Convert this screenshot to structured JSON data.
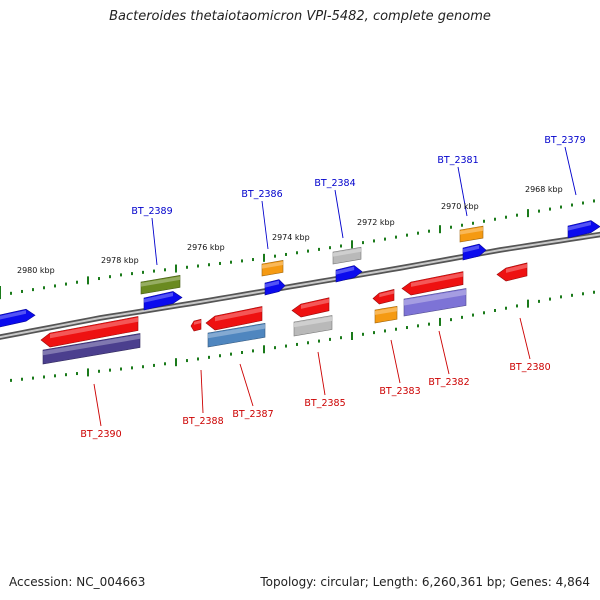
{
  "title": "Bacteroides thetaiotaomicron VPI-5482, complete genome",
  "footer": {
    "accession": "Accession: NC_004663",
    "summary": "Topology: circular; Length: 6,260,361 bp; Genes: 4,864"
  },
  "colors": {
    "forward_label": "#0000cc",
    "reverse_label": "#cc0000",
    "backbone": "#888888",
    "tick": "#1a7a1a",
    "red": "#ee1111",
    "blue": "#0b0bee",
    "orange": "#f59a12",
    "silver": "#b9b9b9",
    "olive": "#6a8a20",
    "indigo": "#4b3f8e",
    "lavender": "#7d73d6",
    "steel": "#4f86bf"
  },
  "scale_labels": [
    "2980 kbp",
    "2978 kbp",
    "2976 kbp",
    "2974 kbp",
    "2972 kbp",
    "2970 kbp",
    "2968 kbp"
  ],
  "forward_genes": [
    {
      "locus": "",
      "color": "blue"
    },
    {
      "locus": "BT_2389",
      "color": "olive"
    },
    {
      "locus": "",
      "color": "blue"
    },
    {
      "locus": "BT_2386",
      "color": "orange"
    },
    {
      "locus": "",
      "color": "blue"
    },
    {
      "locus": "BT_2384",
      "color": "silver"
    },
    {
      "locus": "",
      "color": "blue"
    },
    {
      "locus": "BT_2381",
      "color": "orange"
    },
    {
      "locus": "",
      "color": "blue"
    },
    {
      "locus": "BT_2379",
      "color": "blue"
    }
  ],
  "reverse_genes": [
    {
      "locus": "BT_2390",
      "color": "red"
    },
    {
      "locus": "",
      "color": "indigo"
    },
    {
      "locus": "BT_2388",
      "color": "red"
    },
    {
      "locus": "BT_2387",
      "color": "red"
    },
    {
      "locus": "",
      "color": "steel"
    },
    {
      "locus": "BT_2385",
      "color": "red"
    },
    {
      "locus": "",
      "color": "silver"
    },
    {
      "locus": "",
      "color": "red"
    },
    {
      "locus": "BT_2383",
      "color": "orange"
    },
    {
      "locus": "BT_2382",
      "color": "red"
    },
    {
      "locus": "",
      "color": "lavender"
    },
    {
      "locus": "BT_2380",
      "color": "red"
    }
  ]
}
